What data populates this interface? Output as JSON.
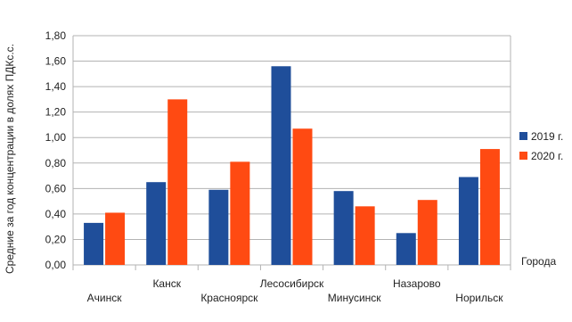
{
  "chart_data": {
    "type": "bar",
    "title": "",
    "xlabel": "Города",
    "ylabel": "Средние за год концентрации в долях ПДКс.с.",
    "categories": [
      "Ачинск",
      "Канск",
      "Красноярск",
      "Лесосибирск",
      "Минусинск",
      "Назарово",
      "Норильск"
    ],
    "series": [
      {
        "name": "2019 г.",
        "color": "#1f4e9a",
        "values": [
          0.33,
          0.65,
          0.59,
          1.56,
          0.58,
          0.25,
          0.69
        ]
      },
      {
        "name": "2020 г.",
        "color": "#ff4a12",
        "values": [
          0.41,
          1.3,
          0.81,
          1.07,
          0.46,
          0.51,
          0.91
        ]
      }
    ],
    "yticks": [
      "0,00",
      "0,20",
      "0,40",
      "0,60",
      "0,80",
      "1,00",
      "1,20",
      "1,40",
      "1,60",
      "1,80"
    ],
    "ylim": [
      0,
      1.8
    ],
    "grid": true,
    "legend_position": "right"
  }
}
